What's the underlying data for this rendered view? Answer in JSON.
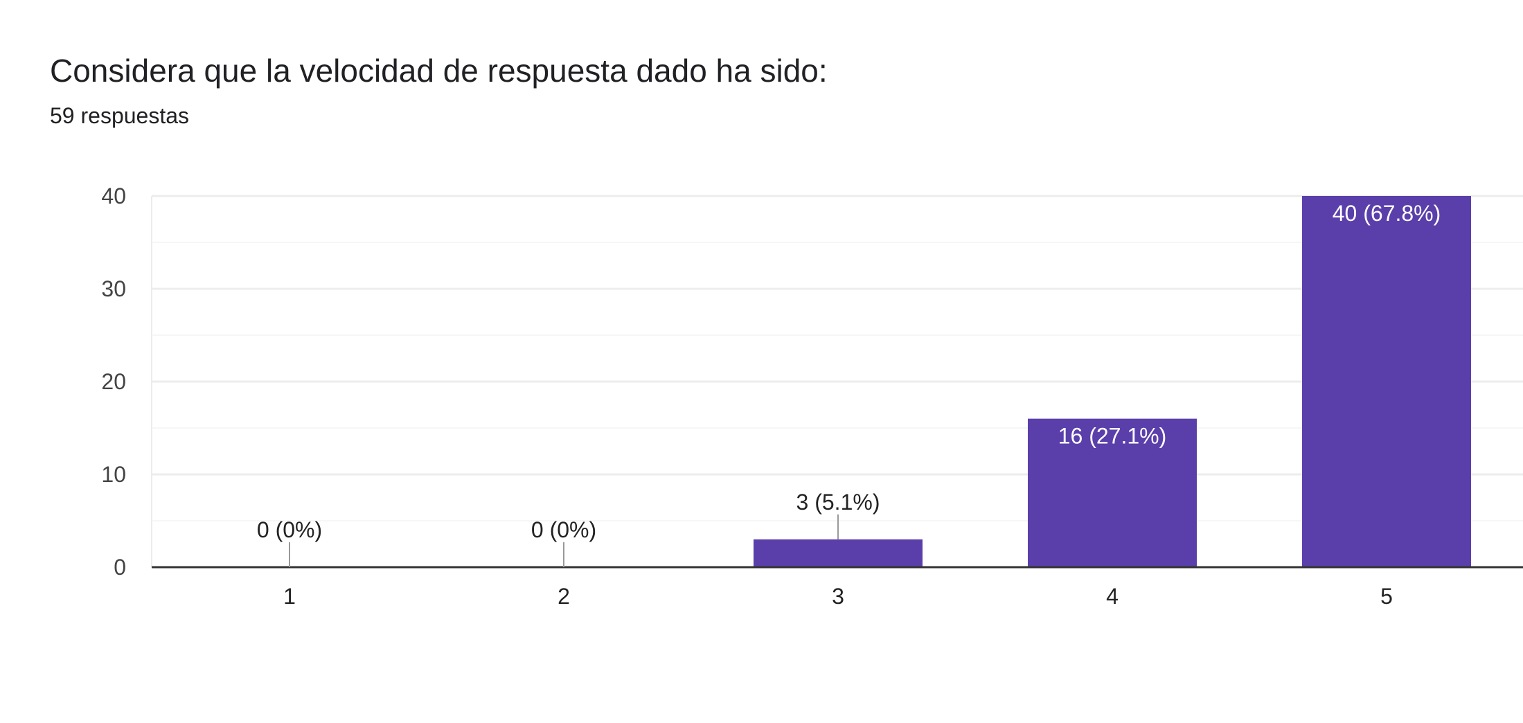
{
  "header": {
    "title": "Considera que la velocidad de respuesta dado ha sido:",
    "response_count": "59 respuestas"
  },
  "colors": {
    "bar": "#5a3fab",
    "gridline": "#ececec",
    "minor_gridline": "#f6f6f6",
    "axis": "#333333",
    "label_inside": "#ffffff",
    "label_outside": "#222222",
    "leader": "#999999"
  },
  "chart_data": {
    "type": "bar",
    "categories": [
      "1",
      "2",
      "3",
      "4",
      "5"
    ],
    "values": [
      0,
      0,
      3,
      16,
      40
    ],
    "data_labels": [
      "0 (0%)",
      "0 (0%)",
      "3 (5.1%)",
      "16 (27.1%)",
      "40 (67.8%)"
    ],
    "y_ticks": [
      "0",
      "10",
      "20",
      "30",
      "40"
    ],
    "ylim": [
      0,
      40
    ],
    "title": "Considera que la velocidad de respuesta dado ha sido:",
    "xlabel": "",
    "ylabel": "",
    "grid": true,
    "legend": "none"
  }
}
